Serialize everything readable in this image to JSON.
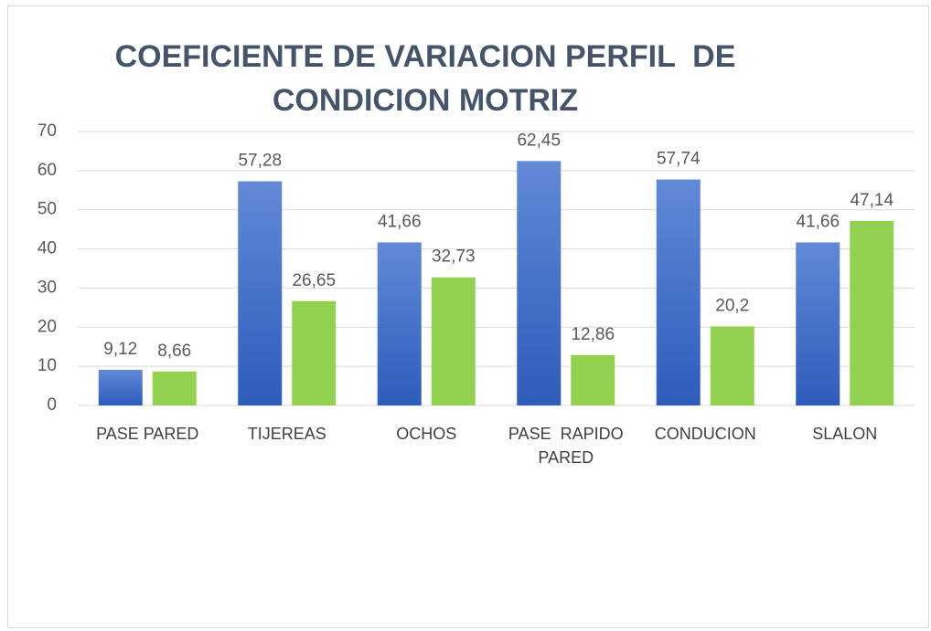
{
  "chart_data": {
    "type": "bar",
    "title": "COEFICIENTE DE VARIACION PERFIL  DE CONDICION MOTRIZ",
    "categories": [
      "PASE PARED",
      "TIJEREAS",
      "OCHOS",
      "PASE  RAPIDO PARED",
      "CONDUCION",
      "SLALON"
    ],
    "series": [
      {
        "color": "#4472c4",
        "values": [
          9.12,
          57.28,
          41.66,
          62.45,
          57.74,
          41.66
        ],
        "value_labels": [
          "9,12",
          "57,28",
          "41,66",
          "62,45",
          "57,74",
          "41,66"
        ]
      },
      {
        "color": "#92d050",
        "values": [
          8.66,
          26.65,
          32.73,
          12.86,
          20.2,
          47.14
        ],
        "value_labels": [
          "8,66",
          "26,65",
          "32,73",
          "12,86",
          "20,2",
          "47,14"
        ]
      }
    ],
    "ylim": [
      0,
      70
    ],
    "yticks": [
      0,
      10,
      20,
      30,
      40,
      50,
      60,
      70
    ],
    "grid": true
  }
}
